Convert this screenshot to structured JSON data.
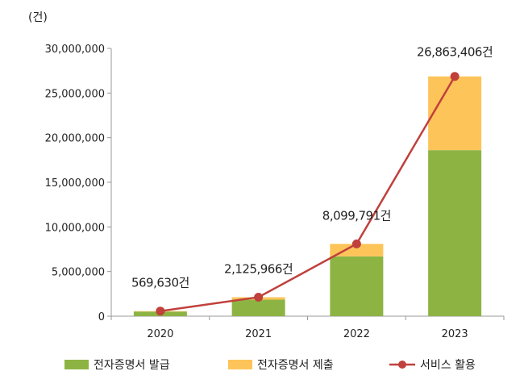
{
  "chart_data": {
    "type": "bar",
    "stacked": true,
    "unit_label": "(건)",
    "categories": [
      "2020",
      "2021",
      "2022",
      "2023"
    ],
    "series": [
      {
        "name": "전자증명서 발급",
        "type": "bar",
        "color": "#8db443",
        "values": [
          520000,
          1850000,
          6700000,
          18600000
        ]
      },
      {
        "name": "전자증명서 제출",
        "type": "bar",
        "color": "#fdc45a",
        "values": [
          49630,
          275966,
          1399791,
          8263406
        ]
      },
      {
        "name": "서비스 활용",
        "type": "line",
        "color": "#c0403c",
        "values": [
          569630,
          2125966,
          8099791,
          26863406
        ],
        "labels": [
          "569,630건",
          "2,125,966건",
          "8,099,791건",
          "26,863,406건"
        ]
      }
    ],
    "ylim": [
      0,
      30000000
    ],
    "yticks": [
      "0",
      "5,000,000",
      "10,000,000",
      "15,000,000",
      "20,000,000",
      "25,000,000",
      "30,000,000"
    ],
    "grid": false,
    "legend_position": "bottom"
  }
}
